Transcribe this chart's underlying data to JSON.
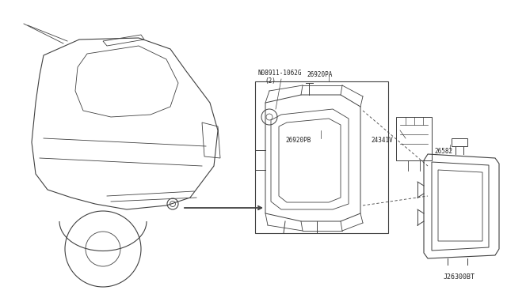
{
  "background_color": "#ffffff",
  "line_color": "#404040",
  "text_color": "#222222",
  "fig_width": 6.4,
  "fig_height": 3.72,
  "labels": {
    "part1a": "N08911-1062G",
    "part1b": "(2)",
    "part2": "26920PA",
    "part3": "26920PB",
    "part4": "24341V",
    "part5": "26582",
    "footer": "J26300BT"
  },
  "font_size_label": 5.5,
  "font_size_footer": 6.0
}
